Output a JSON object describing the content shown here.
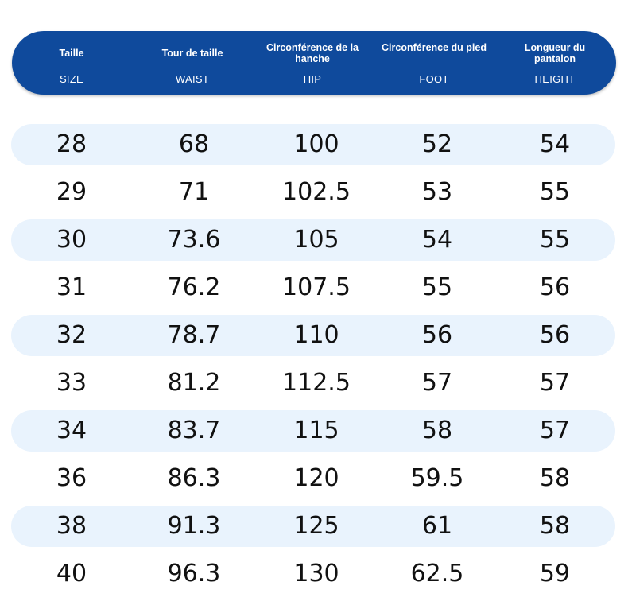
{
  "header": {
    "columns": [
      {
        "label_fr": "Taille",
        "label_en": "SIZE"
      },
      {
        "label_fr": "Tour de taille",
        "label_en": "WAIST"
      },
      {
        "label_fr": "Circonférence de la hanche",
        "label_en": "HIP"
      },
      {
        "label_fr": "Circonférence du pied",
        "label_en": "FOOT"
      },
      {
        "label_fr": "Longueur du pantalon",
        "label_en": "HEIGHT"
      }
    ]
  },
  "rows": [
    [
      "28",
      "68",
      "100",
      "52",
      "54"
    ],
    [
      "29",
      "71",
      "102.5",
      "53",
      "55"
    ],
    [
      "30",
      "73.6",
      "105",
      "54",
      "55"
    ],
    [
      "31",
      "76.2",
      "107.5",
      "55",
      "56"
    ],
    [
      "32",
      "78.7",
      "110",
      "56",
      "56"
    ],
    [
      "33",
      "81.2",
      "112.5",
      "57",
      "57"
    ],
    [
      "34",
      "83.7",
      "115",
      "58",
      "57"
    ],
    [
      "36",
      "86.3",
      "120",
      "59.5",
      "58"
    ],
    [
      "38",
      "91.3",
      "125",
      "61",
      "58"
    ],
    [
      "40",
      "96.3",
      "130",
      "62.5",
      "59"
    ]
  ],
  "colors": {
    "header_bg": "#0f4a9c",
    "header_text": "#ffffff",
    "row_shade": "#e9f3fd",
    "cell_text": "#111111"
  }
}
